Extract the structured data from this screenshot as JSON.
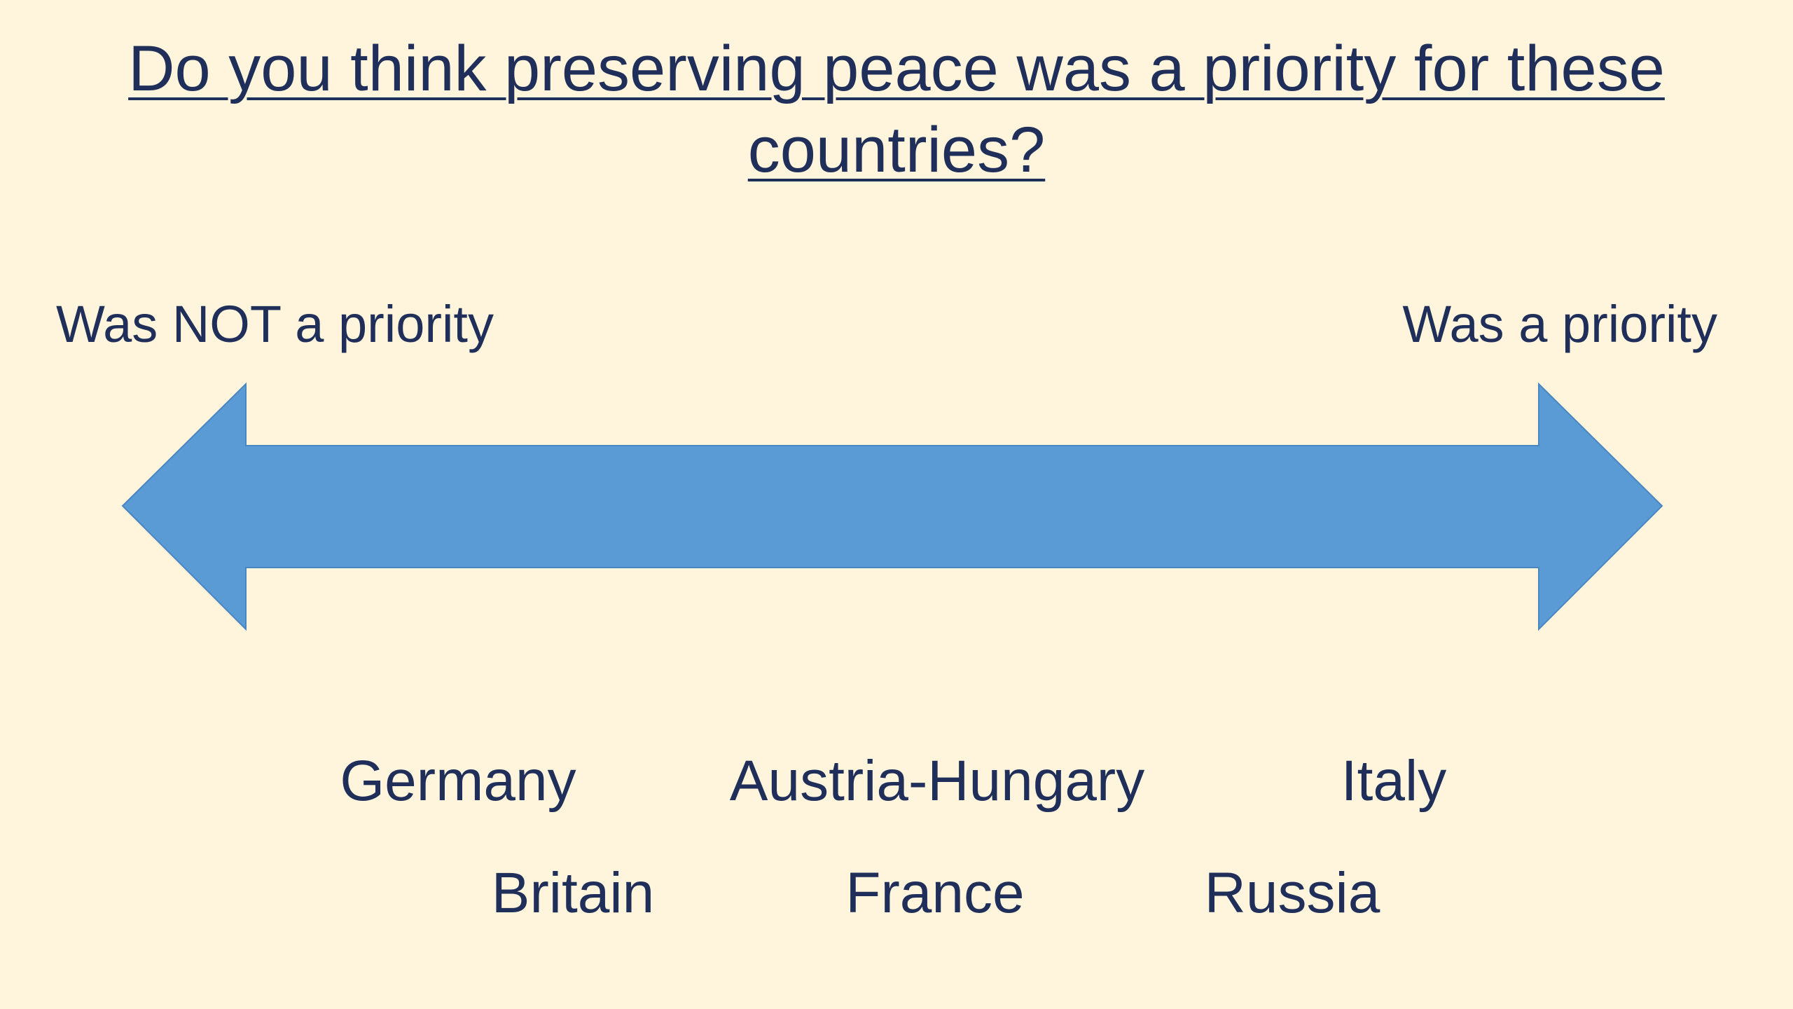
{
  "slide": {
    "title": "Do you think preserving peace was a priority for these countries?",
    "scale": {
      "left_label": "Was NOT a priority",
      "right_label": "Was a priority",
      "arrow_color": "#5b9bd5"
    },
    "countries": {
      "row1": [
        "Germany",
        "Austria-Hungary",
        "Italy"
      ],
      "row2": [
        "Britain",
        "France",
        "Russia"
      ]
    },
    "colors": {
      "background": "#fff4dc",
      "text": "#1f2f5a"
    }
  }
}
